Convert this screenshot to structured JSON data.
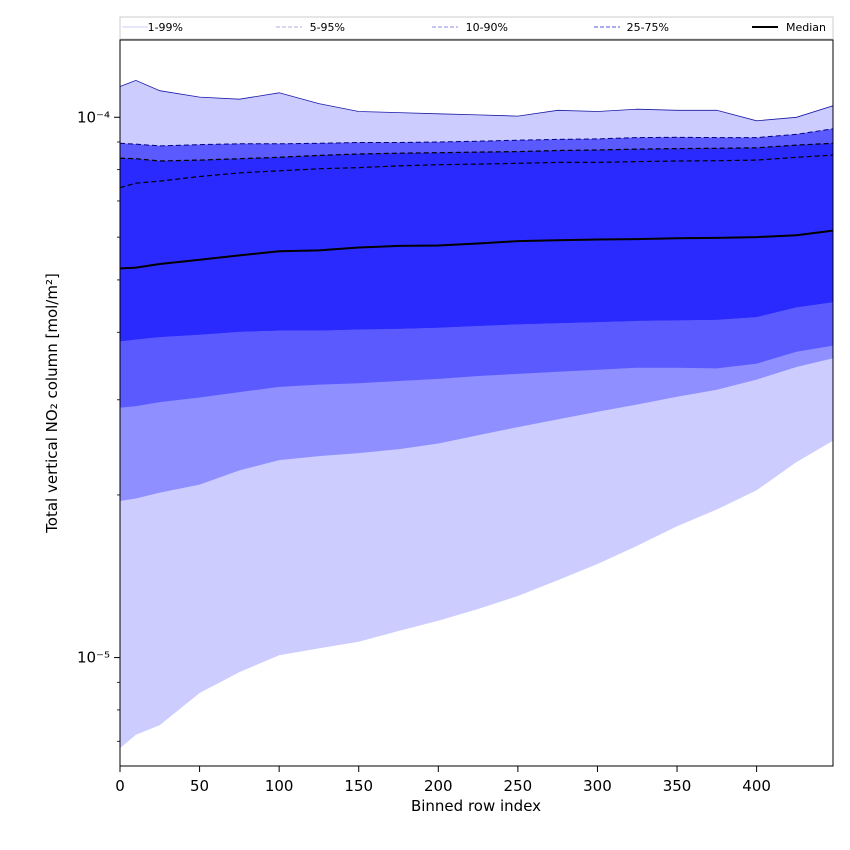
{
  "chart_data": {
    "type": "area",
    "xlabel": "Binned row index",
    "ylabel": "Total vertical NO₂ column [mol/m²]",
    "xlim": [
      0,
      448
    ],
    "ylim": [
      6.3e-06,
      0.000139
    ],
    "yscale": "log",
    "grid": false,
    "legend_placement": "top",
    "x_ticks": [
      {
        "value": 0,
        "label": "0"
      },
      {
        "value": 50,
        "label": "50"
      },
      {
        "value": 100,
        "label": "100"
      },
      {
        "value": 150,
        "label": "150"
      },
      {
        "value": 200,
        "label": "200"
      },
      {
        "value": 250,
        "label": "250"
      },
      {
        "value": 300,
        "label": "300"
      },
      {
        "value": 350,
        "label": "350"
      },
      {
        "value": 400,
        "label": "400"
      }
    ],
    "y_ticks": [
      {
        "value": 1e-05,
        "label": "10⁻⁵"
      },
      {
        "value": 0.0001,
        "label": "10⁻⁴"
      }
    ],
    "x": [
      0,
      10,
      25,
      50,
      75,
      100,
      125,
      150,
      175,
      200,
      225,
      250,
      275,
      300,
      325,
      350,
      375,
      400,
      425,
      448
    ],
    "bands": [
      {
        "name": "1-99%",
        "fill": "#ccccff",
        "line_color": "#1a1aa6",
        "line_style": "solid",
        "lower": [
          6.8e-06,
          7.2e-06,
          7.5e-06,
          8.6e-06,
          9.4e-06,
          1.01e-05,
          1.04e-05,
          1.07e-05,
          1.12e-05,
          1.17e-05,
          1.23e-05,
          1.3e-05,
          1.39e-05,
          1.49e-05,
          1.61e-05,
          1.75e-05,
          1.88e-05,
          2.04e-05,
          2.3e-05,
          2.52e-05
        ],
        "upper": [
          0.000114,
          0.000117,
          0.000112,
          0.000109,
          0.000108,
          0.000111,
          0.000106,
          0.0001025,
          0.000102,
          0.0001015,
          0.000101,
          0.0001005,
          0.000103,
          0.0001025,
          0.0001035,
          0.000103,
          0.000103,
          9.85e-05,
          0.0001,
          0.000105
        ]
      },
      {
        "name": "5-95%",
        "fill": "#8f8fff",
        "line_color": "#3a3aa6",
        "line_style": "dashed",
        "lower": [
          1.95e-05,
          1.97e-05,
          2.02e-05,
          2.09e-05,
          2.22e-05,
          2.32e-05,
          2.36e-05,
          2.39e-05,
          2.43e-05,
          2.49e-05,
          2.58e-05,
          2.67e-05,
          2.76e-05,
          2.85e-05,
          2.94e-05,
          3.04e-05,
          3.13e-05,
          3.27e-05,
          3.45e-05,
          3.58e-05
        ]
      },
      {
        "name": "10-90%",
        "fill": "#5a5aff",
        "line_color": "#000080",
        "line_style": "dashed",
        "lower": [
          2.9e-05,
          2.92e-05,
          2.97e-05,
          3.03e-05,
          3.1e-05,
          3.17e-05,
          3.2e-05,
          3.22e-05,
          3.25e-05,
          3.28e-05,
          3.32e-05,
          3.35e-05,
          3.38e-05,
          3.41e-05,
          3.44e-05,
          3.44e-05,
          3.43e-05,
          3.5e-05,
          3.68e-05,
          3.78e-05
        ],
        "upper": [
          8.95e-05,
          8.92e-05,
          8.85e-05,
          8.9e-05,
          8.93e-05,
          8.93e-05,
          8.95e-05,
          8.98e-05,
          8.98e-05,
          9e-05,
          9.03e-05,
          9.07e-05,
          9.1e-05,
          9.12e-05,
          9.17e-05,
          9.18e-05,
          9.17e-05,
          9.17e-05,
          9.3e-05,
          9.52e-05
        ]
      },
      {
        "name": "25-75%",
        "fill": "#2a2aff",
        "line_color": "#000000",
        "line_style": "dashed",
        "lower": [
          3.85e-05,
          3.88e-05,
          3.92e-05,
          3.96e-05,
          4.01e-05,
          4.03e-05,
          4.03e-05,
          4.05e-05,
          4.06e-05,
          4.08e-05,
          4.11e-05,
          4.14e-05,
          4.16e-05,
          4.18e-05,
          4.2e-05,
          4.21e-05,
          4.22e-05,
          4.27e-05,
          4.45e-05,
          4.55e-05
        ],
        "upper": [
          8.4e-05,
          8.38e-05,
          8.3e-05,
          8.33e-05,
          8.38e-05,
          8.43e-05,
          8.5e-05,
          8.55e-05,
          8.58e-05,
          8.6e-05,
          8.62e-05,
          8.64e-05,
          8.68e-05,
          8.7e-05,
          8.73e-05,
          8.75e-05,
          8.76e-05,
          8.78e-05,
          8.88e-05,
          8.95e-05
        ]
      }
    ],
    "inner_band": {
      "fill": "#2a2aff",
      "lower": [
        3.85e-05,
        3.88e-05,
        3.92e-05,
        3.96e-05,
        4.01e-05,
        4.03e-05,
        4.03e-05,
        4.05e-05,
        4.06e-05,
        4.08e-05,
        4.11e-05,
        4.14e-05,
        4.16e-05,
        4.18e-05,
        4.2e-05,
        4.21e-05,
        4.22e-05,
        4.27e-05,
        4.45e-05,
        4.55e-05
      ],
      "upper": [
        7.41e-05,
        7.55e-05,
        7.62e-05,
        7.77e-05,
        7.89e-05,
        7.96e-05,
        8.03e-05,
        8.07e-05,
        8.13e-05,
        8.17e-05,
        8.19e-05,
        8.22e-05,
        8.25e-05,
        8.25e-05,
        8.28e-05,
        8.3e-05,
        8.31e-05,
        8.33e-05,
        8.43e-05,
        8.51e-05
      ]
    },
    "median": {
      "name": "Median",
      "color": "#000000",
      "values": [
        5.25e-05,
        5.27e-05,
        5.35e-05,
        5.45e-05,
        5.55e-05,
        5.65e-05,
        5.67e-05,
        5.74e-05,
        5.78e-05,
        5.79e-05,
        5.84e-05,
        5.9e-05,
        5.92e-05,
        5.94e-05,
        5.95e-05,
        5.97e-05,
        5.98e-05,
        6e-05,
        6.05e-05,
        6.17e-05
      ]
    },
    "legend": [
      {
        "label": "1-99%",
        "color": "#ccccff",
        "style": "solid"
      },
      {
        "label": "5-95%",
        "color": "#b0b0dd",
        "style": "dashed"
      },
      {
        "label": "10-90%",
        "color": "#8888ee",
        "style": "dashed"
      },
      {
        "label": "25-75%",
        "color": "#5555dd",
        "style": "dashed"
      },
      {
        "label": "Median",
        "color": "#000000",
        "style": "solid"
      }
    ]
  }
}
